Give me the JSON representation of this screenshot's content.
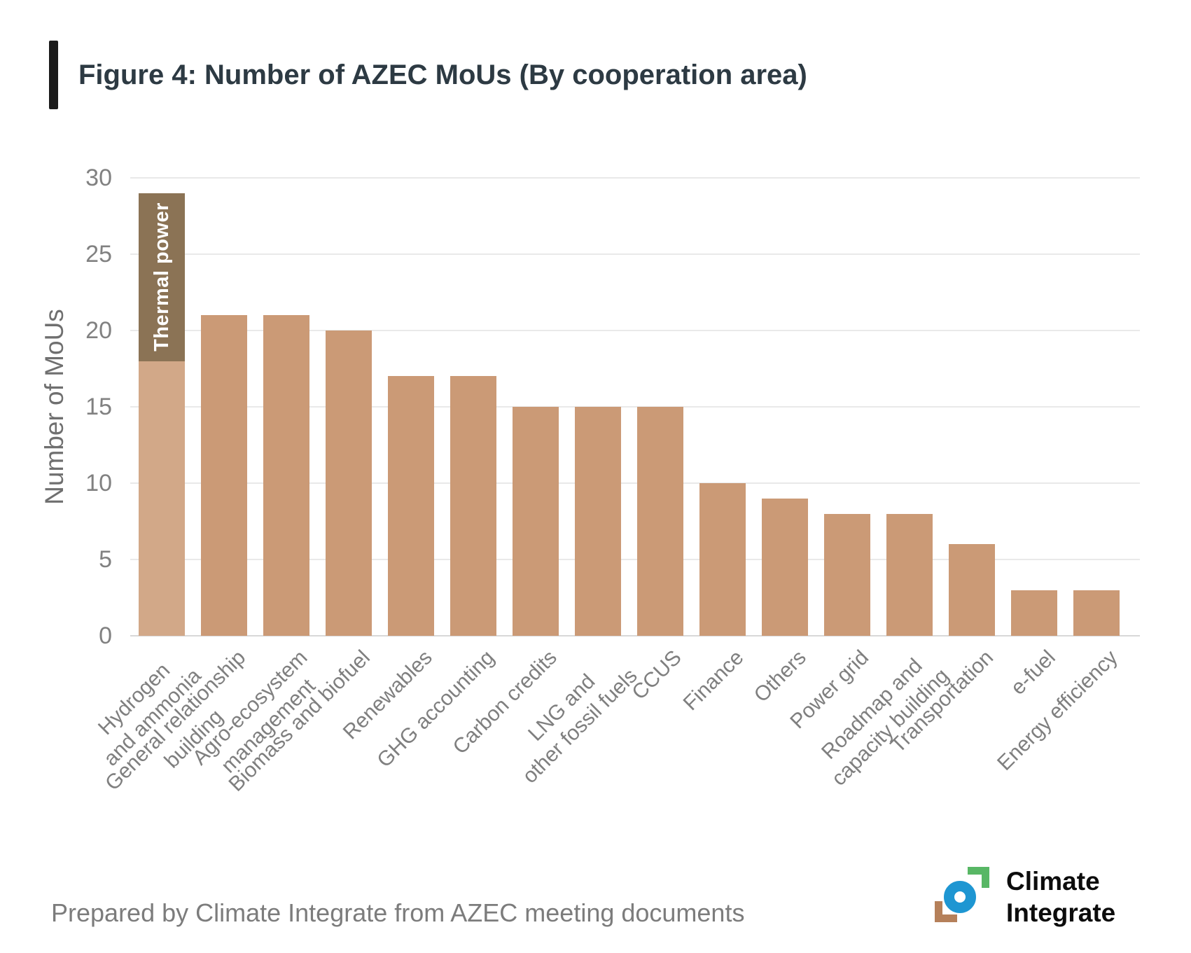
{
  "title": {
    "text": "Figure 4: Number of AZEC MoUs (By cooperation area)"
  },
  "footer": {
    "text": "Prepared by Climate Integrate from AZEC meeting documents"
  },
  "logo": {
    "line1": "Climate",
    "line2": "Integrate",
    "colors": {
      "green": "#58b765",
      "blue": "#1e96d2",
      "brown": "#b5805a",
      "text": "#0c0c0c"
    }
  },
  "chart_data": {
    "type": "bar",
    "title": "Figure 4: Number of AZEC MoUs (By cooperation area)",
    "xlabel": "",
    "ylabel": "Number of MoUs",
    "ylim": [
      0,
      30
    ],
    "yticks": [
      0,
      5,
      10,
      15,
      20,
      25,
      30
    ],
    "grid": true,
    "legend_position": "none",
    "bar_color": "#cb9a76",
    "categories": [
      "Hydrogen and ammonia",
      "General relationship building",
      "Agro-ecosystem management",
      "Biomass and biofuel",
      "Renewables",
      "GHG accounting",
      "Carbon credits",
      "LNG and other fossil fuels",
      "CCUS",
      "Finance",
      "Others",
      "Power grid",
      "Roadmap and capacity building",
      "Transportation",
      "e-fuel",
      "Energy efficiency"
    ],
    "label_lines": [
      [
        "Hydrogen",
        "and ammonia"
      ],
      [
        "General relationship",
        "building"
      ],
      [
        "Agro-ecosystem",
        "management"
      ],
      [
        "Biomass and biofuel"
      ],
      [
        "Renewables"
      ],
      [
        "GHG accounting"
      ],
      [
        "Carbon credits"
      ],
      [
        "LNG and",
        "other fossil fuels"
      ],
      [
        "CCUS"
      ],
      [
        "Finance"
      ],
      [
        "Others"
      ],
      [
        "Power grid"
      ],
      [
        "Roadmap and",
        "capacity building"
      ],
      [
        "Transportation"
      ],
      [
        "e-fuel"
      ],
      [
        "Energy efficiency"
      ]
    ],
    "values": [
      29,
      21,
      21,
      20,
      17,
      17,
      15,
      15,
      15,
      10,
      9,
      8,
      8,
      6,
      3,
      3
    ],
    "stacked_first_bar": {
      "category": "Hydrogen and ammonia",
      "base_value": 18,
      "thermal_value": 11,
      "thermal_label": "Thermal power",
      "base_color": "#d2a888",
      "thermal_color": "#8b7355"
    }
  }
}
